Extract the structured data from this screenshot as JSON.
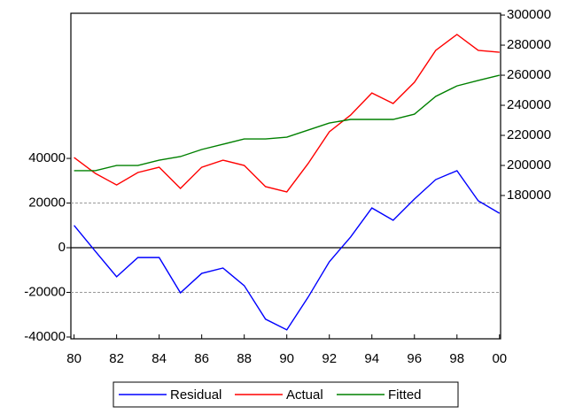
{
  "chart_data": {
    "type": "line",
    "x": [
      1980,
      1981,
      1982,
      1983,
      1984,
      1985,
      1986,
      1987,
      1988,
      1989,
      1990,
      1991,
      1992,
      1993,
      1994,
      1995,
      1996,
      1997,
      1998,
      1999,
      2000
    ],
    "series": [
      {
        "name": "Residual",
        "color": "#0000ff",
        "values": [
          10000,
          -1600,
          -13000,
          -4400,
          -4400,
          -20200,
          -11500,
          -9100,
          -17000,
          -32000,
          -36800,
          -22200,
          -6300,
          4800,
          17800,
          12300,
          21800,
          30500,
          34500,
          21000,
          15400
        ]
      },
      {
        "name": "Actual",
        "color": "#ff0000",
        "axis": "y2",
        "values": [
          205300,
          194700,
          187000,
          195300,
          198800,
          184700,
          198800,
          203500,
          200000,
          185900,
          182400,
          201200,
          222400,
          233500,
          248200,
          241200,
          255300,
          276500,
          287100,
          276500,
          275300
        ]
      },
      {
        "name": "Fitted",
        "color": "#008000",
        "axis": "y2",
        "values": [
          196500,
          196500,
          200000,
          200000,
          203500,
          205900,
          210600,
          214100,
          217600,
          217600,
          218800,
          223500,
          228200,
          230600,
          230600,
          230600,
          234100,
          245900,
          252900,
          256500,
          260000
        ]
      }
    ],
    "xlim": [
      1979.85,
      2000.05
    ],
    "xticks": [
      {
        "value": 1980,
        "label": "80"
      },
      {
        "value": 1982,
        "label": "82"
      },
      {
        "value": 1984,
        "label": "84"
      },
      {
        "value": 1986,
        "label": "86"
      },
      {
        "value": 1988,
        "label": "88"
      },
      {
        "value": 1990,
        "label": "90"
      },
      {
        "value": 1992,
        "label": "92"
      },
      {
        "value": 1994,
        "label": "94"
      },
      {
        "value": 1996,
        "label": "96"
      },
      {
        "value": 1998,
        "label": "98"
      },
      {
        "value": 2000,
        "label": "00"
      }
    ],
    "ylim": [
      -40800,
      105000
    ],
    "yticks": [
      -40000,
      -20000,
      0,
      20000,
      40000
    ],
    "y2lim": [
      84700,
      301200
    ],
    "y2ticks": [
      180000,
      200000,
      220000,
      240000,
      260000,
      280000,
      300000
    ],
    "hlines": [
      -20000,
      0,
      20000
    ],
    "legend": "bottom"
  }
}
